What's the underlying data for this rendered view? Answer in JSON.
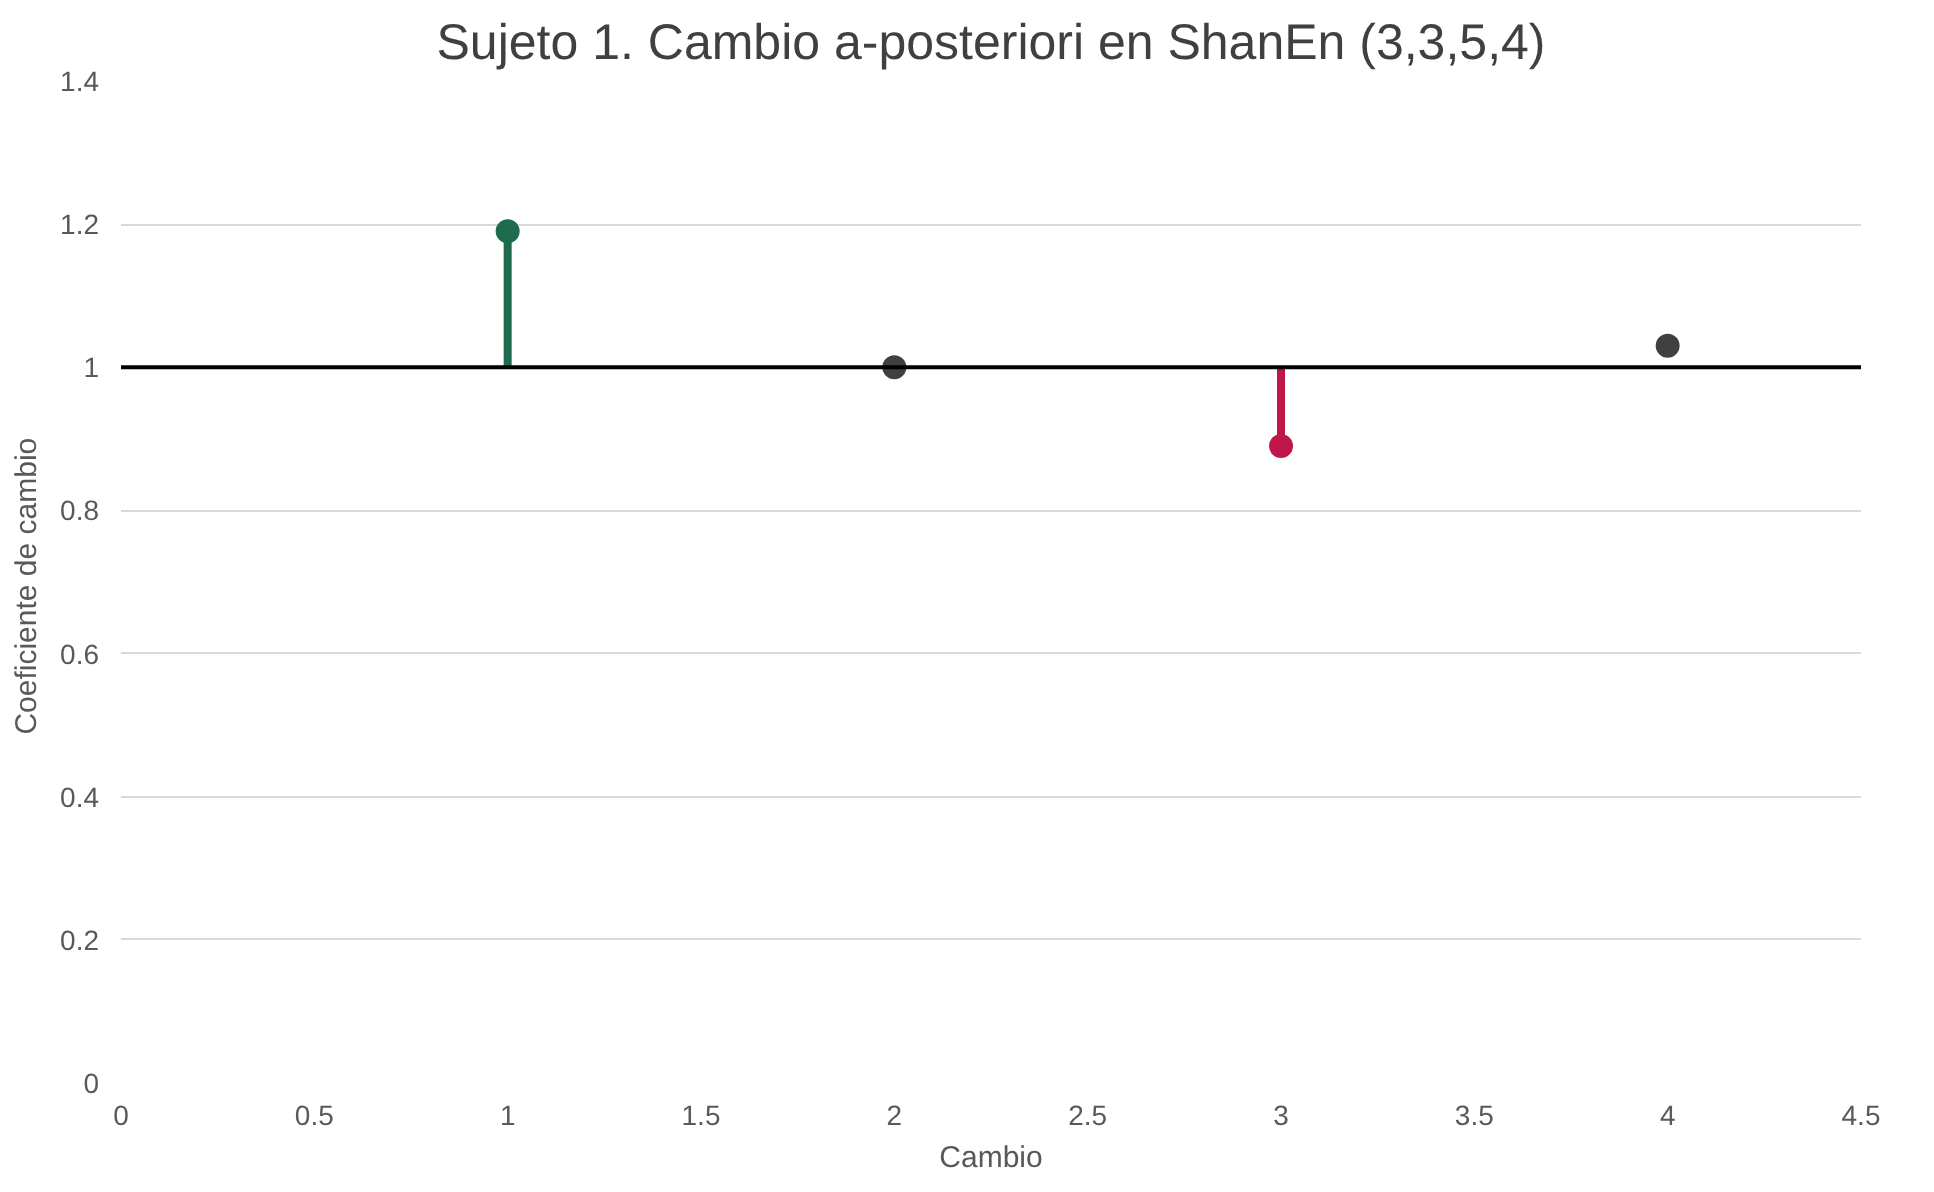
{
  "chart_data": {
    "type": "scatter",
    "title": "Sujeto 1. Cambio a-posteriori en ShanEn (3,3,5,4)",
    "xlabel": "Cambio",
    "ylabel": "Coeficiente de  cambio",
    "x": [
      1,
      2,
      3,
      4
    ],
    "values": [
      1.19,
      1.0,
      0.89,
      1.03
    ],
    "colors": [
      "#1e6b4e",
      "#404040",
      "#c0174a",
      "#404040"
    ],
    "errors": [
      [
        1.0,
        1.19
      ],
      null,
      [
        0.89,
        1.0
      ],
      null
    ],
    "marker": "circle",
    "xlim": [
      0,
      4.5
    ],
    "xticks": [
      0,
      0.5,
      1,
      1.5,
      2,
      2.5,
      3,
      3.5,
      4,
      4.5
    ],
    "ylim": [
      0,
      1.4
    ],
    "yticks": [
      0,
      0.2,
      0.4,
      0.6,
      0.8,
      1,
      1.2,
      1.4
    ],
    "ref_lines": [
      {
        "axis": "y",
        "value": 1,
        "label": null,
        "color": "#000000"
      }
    ],
    "grid": "y"
  }
}
